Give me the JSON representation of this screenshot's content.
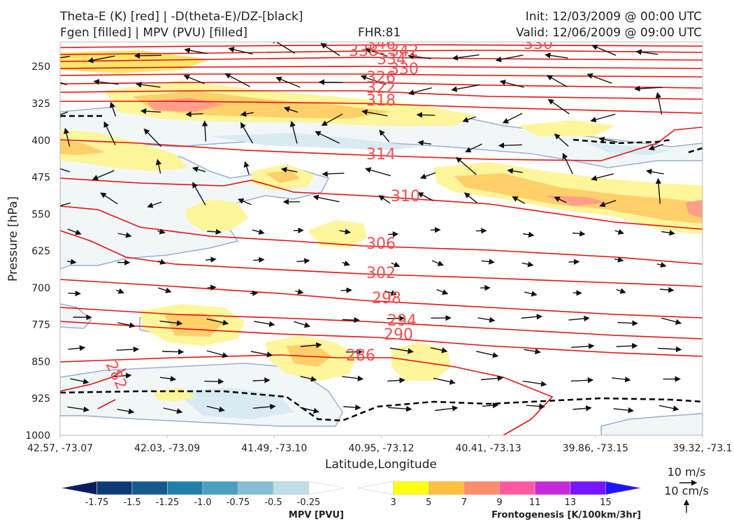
{
  "header": {
    "title_left_1": "Theta-E (K) [red] | -D(theta-E)/DZ-[black]",
    "title_left_2": "Fgen [filled] | MPV (PVU) [filled]",
    "fhr": "FHR:81",
    "init": "Init: 12/03/2009 @ 00:00 UTC",
    "valid": "Valid: 12/06/2009 @ 09:00 UTC"
  },
  "chart_data": {
    "type": "cross-section",
    "xlabel": "Latitude,Longitude",
    "ylabel": "Pressure [hPa]",
    "ylim": [
      1000,
      200
    ],
    "y_ticks": [
      250,
      325,
      400,
      475,
      550,
      625,
      700,
      775,
      850,
      925,
      1000
    ],
    "x_ticks": [
      "42.57, -73.07",
      "42.03, -73.09",
      "41.49, -73.10",
      "40.95, -73.12",
      "40.41, -73.13",
      "39.86, -73.15",
      "39.32, -73.1"
    ],
    "theta_e_labels": [
      "346",
      "338",
      "342",
      "334",
      "330",
      "330",
      "326",
      "322",
      "318",
      "314",
      "310",
      "306",
      "302",
      "298",
      "294",
      "290",
      "286",
      "282"
    ],
    "wind_reference": [
      "10 m/s",
      "10 cm/s"
    ],
    "colorbars": [
      {
        "name": "MPV [PVU]",
        "ticks": [
          "-1.75",
          "-1.5",
          "-1.25",
          "-1.0",
          "-0.75",
          "-0.5",
          "-0.25"
        ],
        "colors": [
          "#0a1c5e",
          "#0f3a78",
          "#155a8f",
          "#1f7fa8",
          "#4aa0c0",
          "#86bfd5",
          "#bfdde7",
          "#ffffff"
        ]
      },
      {
        "name": "Frontogenesis [K/100km/3hr]",
        "ticks": [
          "3",
          "5",
          "7",
          "9",
          "11",
          "13",
          "15"
        ],
        "colors": [
          "#ffffff",
          "#ffff14",
          "#ffc040",
          "#ff8c6e",
          "#ff5aa0",
          "#c828dc",
          "#7814ff",
          "#1e14ff"
        ]
      }
    ]
  }
}
